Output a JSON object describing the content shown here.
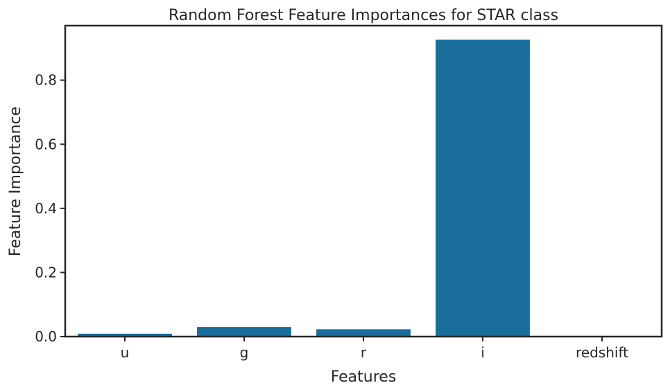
{
  "chart_data": {
    "type": "bar",
    "title": "Random Forest Feature Importances for STAR class",
    "xlabel": "Features",
    "ylabel": "Feature Importance",
    "categories": [
      "u",
      "g",
      "r",
      "i",
      "redshift"
    ],
    "values": [
      0.009,
      0.03,
      0.023,
      0.926,
      0.0
    ],
    "ylim": [
      0,
      0.97
    ],
    "yticks": [
      0.0,
      0.2,
      0.4,
      0.6,
      0.8
    ],
    "ytick_labels": [
      "0.0",
      "0.2",
      "0.4",
      "0.6",
      "0.8"
    ],
    "grid": false,
    "bar_color": "#1a6e9c",
    "axis_color": "#262626"
  }
}
